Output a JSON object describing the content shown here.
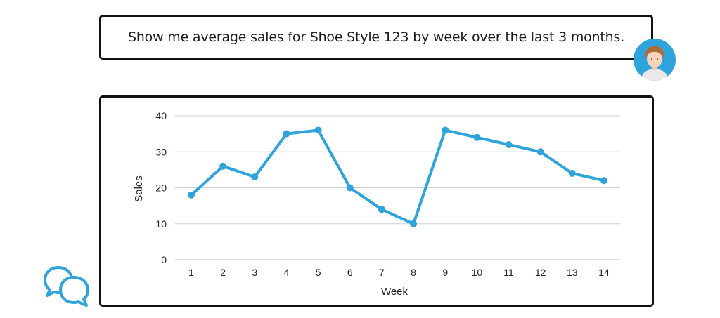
{
  "prompt": {
    "text": "Show me average sales for Shoe Style 123 by week over the last 3 months."
  },
  "icons": {
    "user": "user-avatar-icon",
    "chat": "chat-bubbles-icon"
  },
  "colors": {
    "series": "#2fa3dc",
    "avatar_bg": "#2fa3dc",
    "grid": "#d0d0d0",
    "border": "#111111"
  },
  "chart_data": {
    "type": "line",
    "title": "",
    "xlabel": "Week",
    "ylabel": "Sales",
    "categories": [
      "1",
      "2",
      "3",
      "4",
      "5",
      "6",
      "7",
      "8",
      "9",
      "10",
      "11",
      "12",
      "13",
      "14"
    ],
    "values": [
      18,
      26,
      23,
      35,
      36,
      20,
      14,
      10,
      36,
      34,
      32,
      30,
      24,
      22
    ],
    "ylim": [
      0,
      40
    ],
    "yticks": [
      "0",
      "10",
      "20",
      "30",
      "40"
    ],
    "grid": true,
    "legend": "none"
  }
}
